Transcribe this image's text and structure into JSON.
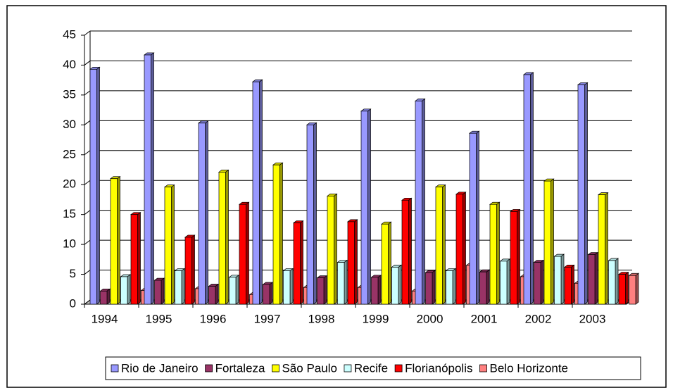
{
  "chart_data": {
    "type": "bar3d",
    "categories": [
      "1994",
      "1995",
      "1996",
      "1997",
      "1998",
      "1999",
      "2000",
      "2001",
      "2002",
      "2003"
    ],
    "series": [
      {
        "name": "Rio de Janeiro",
        "color": "#9999ff",
        "values": [
          39.3,
          41.7,
          30.3,
          37.2,
          30,
          32.3,
          34,
          28.6,
          38.4,
          36.7
        ]
      },
      {
        "name": "Fortaleza",
        "color": "#993366",
        "values": [
          2.2,
          4,
          3,
          3.3,
          4.4,
          4.5,
          5.3,
          5.4,
          7,
          8.3
        ]
      },
      {
        "name": "São Paulo",
        "color": "#ffff00",
        "values": [
          21,
          19.6,
          22.1,
          23.3,
          18.1,
          13.4,
          19.6,
          16.7,
          20.6,
          18.3
        ]
      },
      {
        "name": "Recife",
        "color": "#ccffff",
        "values": [
          4.6,
          5.6,
          4.5,
          5.6,
          7,
          6.2,
          5.6,
          7.2,
          8,
          7.3
        ]
      },
      {
        "name": "Florianópolis",
        "color": "#ff0000",
        "values": [
          15,
          11.2,
          16.7,
          13.6,
          13.8,
          17.4,
          18.4,
          15.5,
          6.2,
          5
        ]
      },
      {
        "name": "Belo Horizonte",
        "color": "#ff8080",
        "values": [
          2.3,
          2.6,
          1.6,
          2.8,
          2.8,
          2.2,
          6.5,
          4.6,
          3.5,
          4.8
        ]
      }
    ],
    "ylim": [
      0,
      45
    ],
    "yticks": [
      0,
      5,
      10,
      15,
      20,
      25,
      30,
      35,
      40,
      45
    ],
    "grid": true,
    "legend": "bottom"
  }
}
